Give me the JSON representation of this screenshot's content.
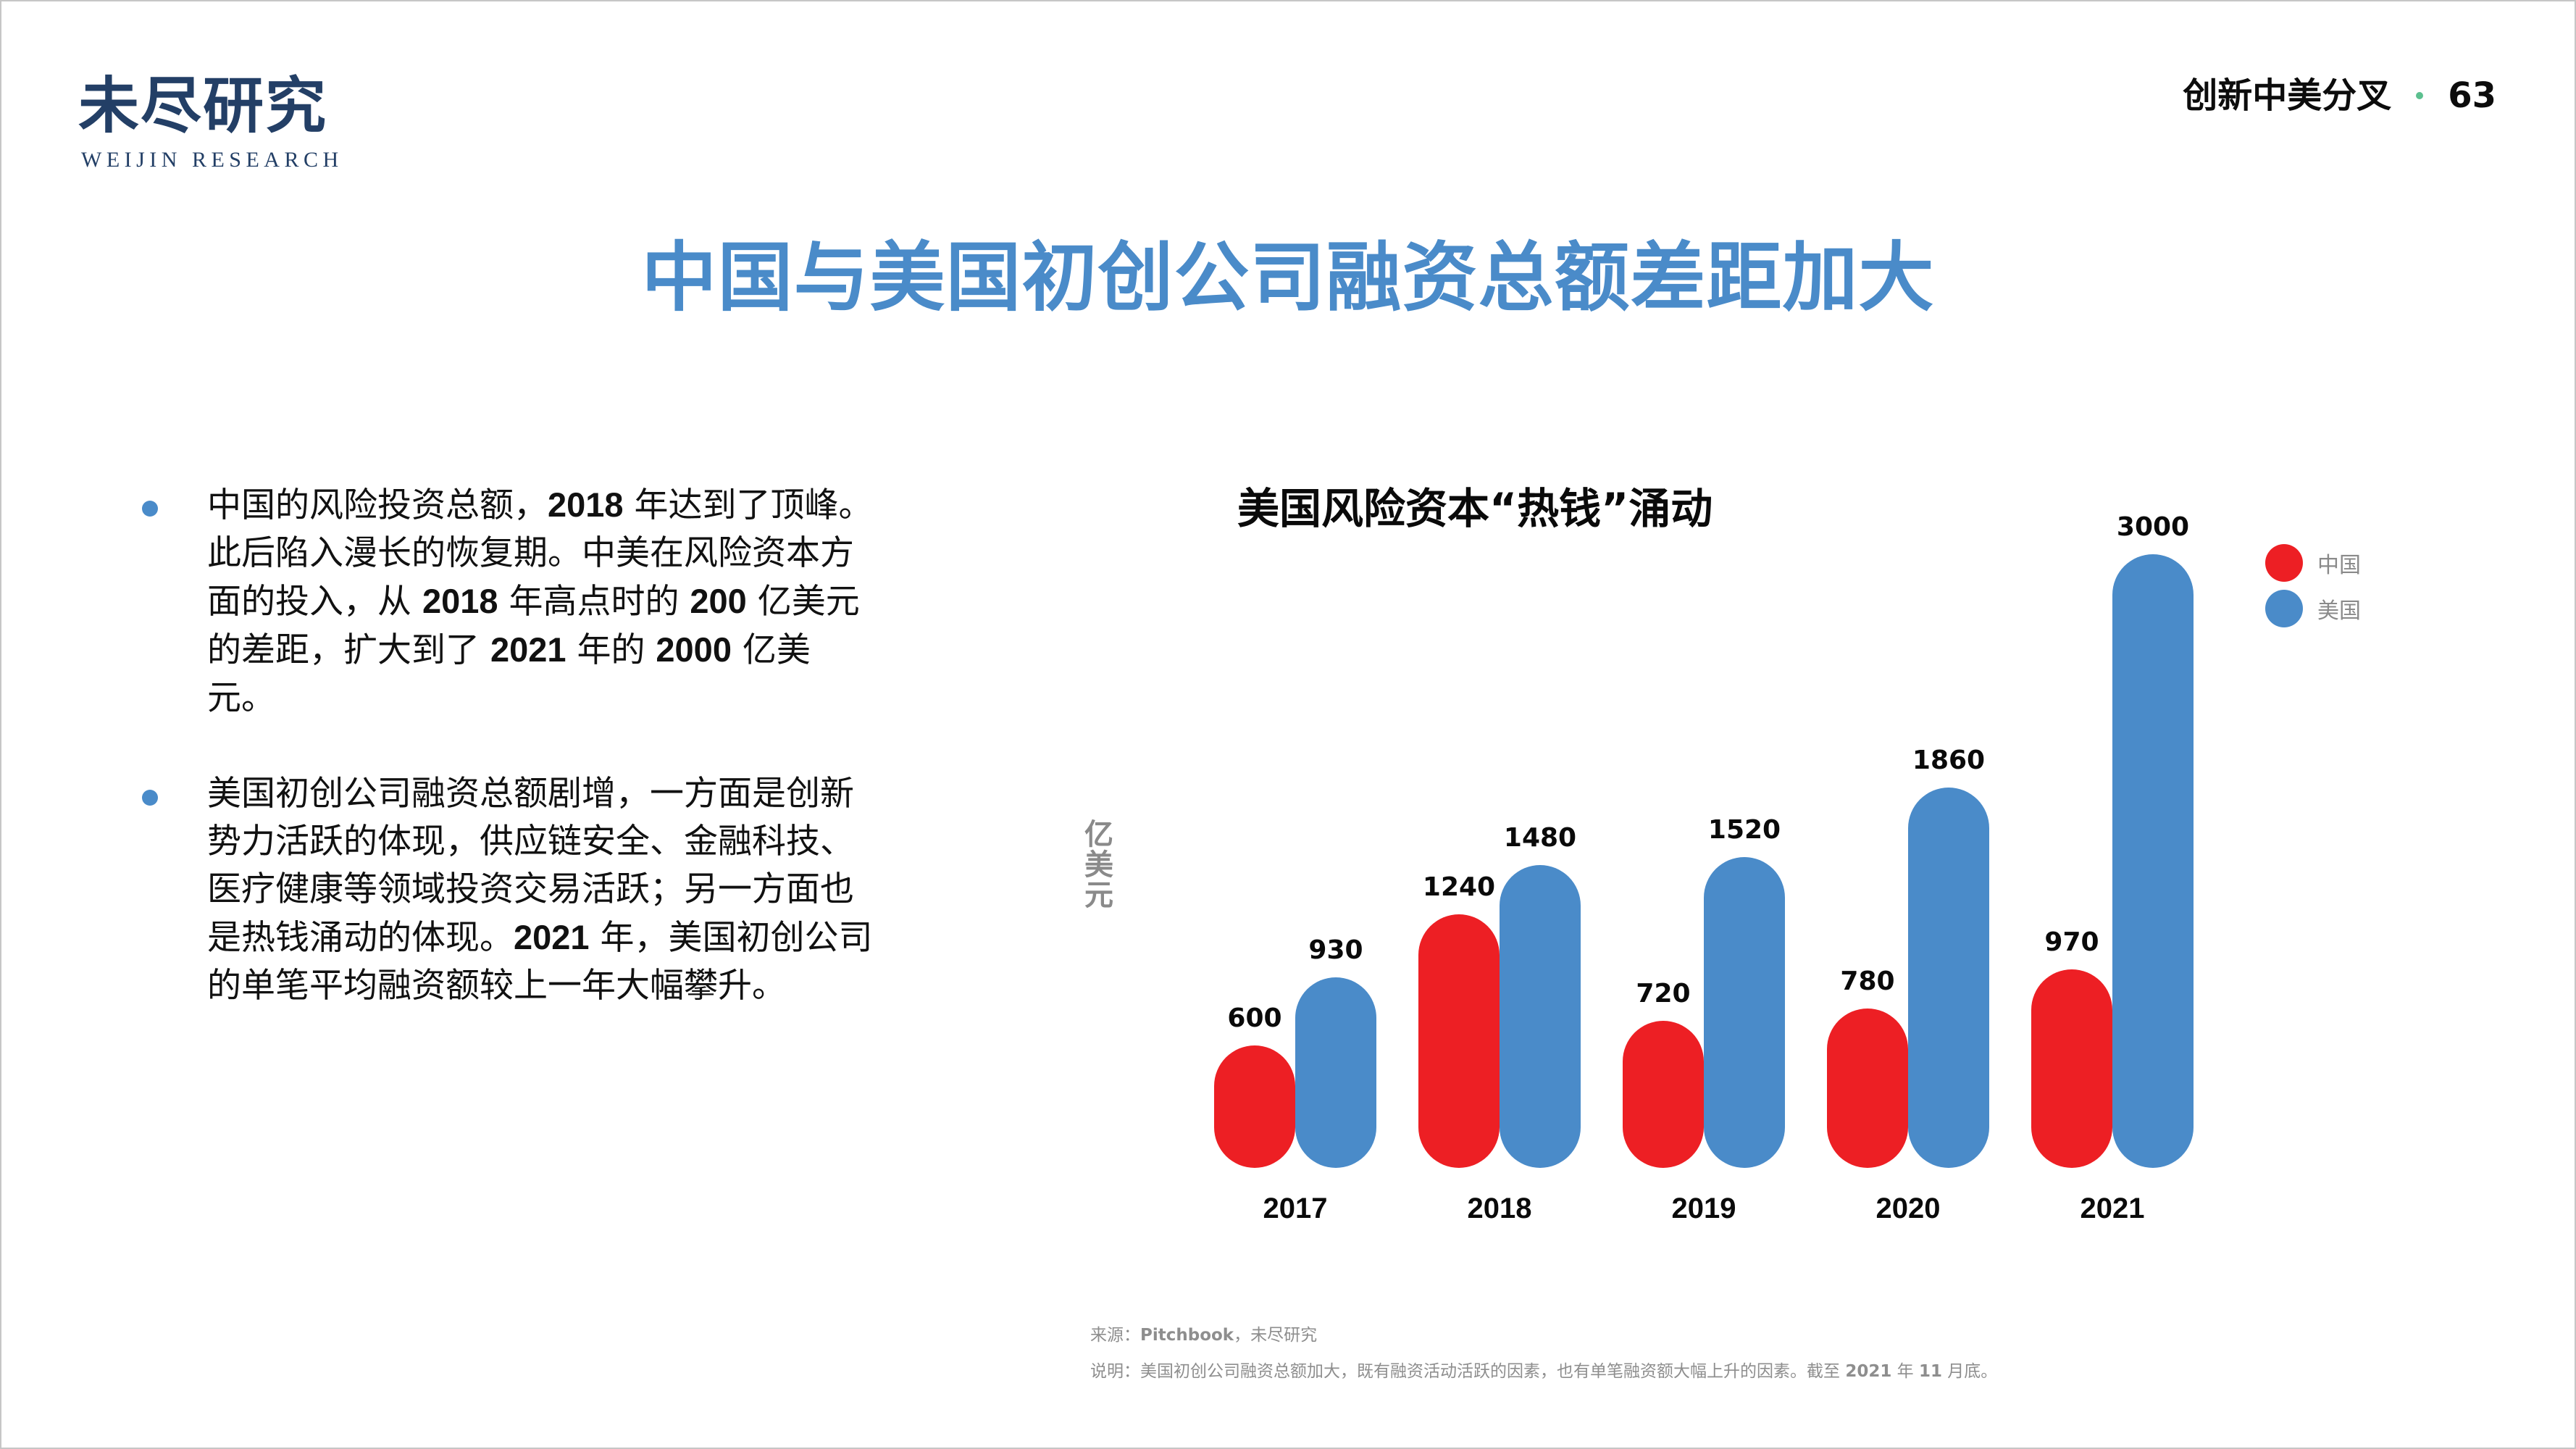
{
  "brand": {
    "logo_cn": "未尽研究",
    "logo_en": "WEIJIN RESEARCH",
    "logo_color": "#233f66"
  },
  "header": {
    "section": "创新中美分叉",
    "page_number": "63",
    "dot_color": "#5cc08f"
  },
  "page_title": "中国与美国初创公司融资总额差距加大",
  "bullets": [
    {
      "segments": [
        {
          "text": "中国的风险投资总额，",
          "bold": false
        },
        {
          "text": "2018",
          "bold": true
        },
        {
          "text": " 年达到了顶峰。此后陷入漫长的恢复期。中美在风险资本方面的投入，从 ",
          "bold": false
        },
        {
          "text": "2018",
          "bold": true
        },
        {
          "text": " 年高点时的 ",
          "bold": false
        },
        {
          "text": "200",
          "bold": true
        },
        {
          "text": " 亿美元的差距，扩大到了 ",
          "bold": false
        },
        {
          "text": "2021",
          "bold": true
        },
        {
          "text": " 年的 ",
          "bold": false
        },
        {
          "text": "2000",
          "bold": true
        },
        {
          "text": " 亿美元。",
          "bold": false
        }
      ]
    },
    {
      "segments": [
        {
          "text": "美国初创公司融资总额剧增，一方面是创新势力活跃的体现，供应链安全、金融科技、医疗健康等领域投资交易活跃；另一方面也是热钱涌动的体现。",
          "bold": false
        },
        {
          "text": "2021",
          "bold": true
        },
        {
          "text": " 年，美国初创公司的单笔平均融资额较上一年大幅攀升。",
          "bold": false
        }
      ]
    }
  ],
  "chart_data": {
    "type": "bar",
    "title": "美国风险资本“热钱”涌动",
    "xlabel": "",
    "ylabel": "亿美元",
    "categories": [
      "2017",
      "2018",
      "2019",
      "2020",
      "2021"
    ],
    "series": [
      {
        "name": "中国",
        "color": "#ed1f24",
        "values": [
          600,
          1240,
          720,
          780,
          970
        ]
      },
      {
        "name": "美国",
        "color": "#4a8bc9",
        "values": [
          930,
          1480,
          1520,
          1860,
          3000
        ]
      }
    ],
    "ylim": [
      0,
      3000
    ],
    "grid": false,
    "legend_position": "top-right",
    "data_labels": true
  },
  "legend": [
    {
      "label": "中国",
      "color": "#ed1f24"
    },
    {
      "label": "美国",
      "color": "#4a8bc9"
    }
  ],
  "footer": {
    "source_label": "来源：",
    "source_bold": "Pitchbook",
    "source_rest": "，未尽研究",
    "note_label": "说明：美国初创公司融资总额加大，既有融资活动活跃的因素，也有单笔融资额大幅上升的因素。截至 ",
    "note_year": "2021",
    "note_mid": " 年 ",
    "note_month": "11",
    "note_end": " 月底。"
  }
}
